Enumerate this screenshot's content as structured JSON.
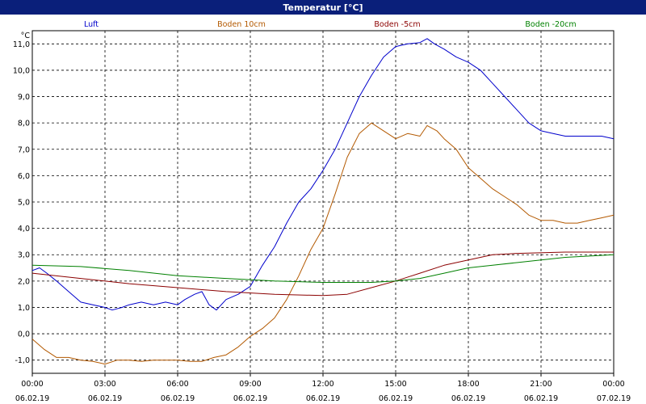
{
  "window": {
    "title": "Temperatur [°C]"
  },
  "chart_data": {
    "type": "line",
    "title": "Temperatur [°C]",
    "ylabel": "°C",
    "xlabel": "",
    "grid": true,
    "legend_placement": "top",
    "ylim": [
      -1.5,
      11.5
    ],
    "yticks": [
      -1.0,
      0.0,
      1.0,
      2.0,
      3.0,
      4.0,
      5.0,
      6.0,
      7.0,
      8.0,
      9.0,
      10.0,
      11.0
    ],
    "ytick_labels": [
      "-1,0",
      "0,0",
      "1,0",
      "2,0",
      "3,0",
      "4,0",
      "5,0",
      "6,0",
      "7,0",
      "8,0",
      "9,0",
      "10,0",
      "11,0"
    ],
    "xlim": [
      0,
      24
    ],
    "xticks": [
      {
        "time": "00:00",
        "date": "06.02.19"
      },
      {
        "time": "03:00",
        "date": "06.02.19"
      },
      {
        "time": "06:00",
        "date": "06.02.19"
      },
      {
        "time": "09:00",
        "date": "06.02.19"
      },
      {
        "time": "12:00",
        "date": "06.02.19"
      },
      {
        "time": "15:00",
        "date": "06.02.19"
      },
      {
        "time": "18:00",
        "date": "06.02.19"
      },
      {
        "time": "21:00",
        "date": "06.02.19"
      },
      {
        "time": "00:00",
        "date": "07.02.19"
      }
    ],
    "series": [
      {
        "name": "Luft",
        "color": "#0000cc",
        "points": [
          [
            0,
            2.4
          ],
          [
            0.3,
            2.5
          ],
          [
            0.6,
            2.3
          ],
          [
            1,
            2.0
          ],
          [
            1.5,
            1.6
          ],
          [
            2,
            1.2
          ],
          [
            2.5,
            1.1
          ],
          [
            3,
            1.0
          ],
          [
            3.3,
            0.9
          ],
          [
            3.7,
            1.0
          ],
          [
            4,
            1.1
          ],
          [
            4.5,
            1.2
          ],
          [
            5,
            1.1
          ],
          [
            5.5,
            1.2
          ],
          [
            6,
            1.1
          ],
          [
            6.3,
            1.3
          ],
          [
            6.7,
            1.5
          ],
          [
            7,
            1.6
          ],
          [
            7.3,
            1.1
          ],
          [
            7.6,
            0.9
          ],
          [
            8,
            1.3
          ],
          [
            8.5,
            1.5
          ],
          [
            9,
            1.8
          ],
          [
            9.5,
            2.6
          ],
          [
            10,
            3.3
          ],
          [
            10.5,
            4.2
          ],
          [
            11,
            5.0
          ],
          [
            11.5,
            5.5
          ],
          [
            12,
            6.2
          ],
          [
            12.5,
            7.0
          ],
          [
            13,
            8.0
          ],
          [
            13.5,
            9.0
          ],
          [
            14,
            9.8
          ],
          [
            14.5,
            10.5
          ],
          [
            15,
            10.9
          ],
          [
            15.5,
            11.0
          ],
          [
            16,
            11.05
          ],
          [
            16.3,
            11.2
          ],
          [
            16.6,
            11.0
          ],
          [
            17,
            10.8
          ],
          [
            17.5,
            10.5
          ],
          [
            18,
            10.3
          ],
          [
            18.5,
            10.0
          ],
          [
            19,
            9.5
          ],
          [
            19.5,
            9.0
          ],
          [
            20,
            8.5
          ],
          [
            20.5,
            8.0
          ],
          [
            21,
            7.7
          ],
          [
            21.5,
            7.6
          ],
          [
            22,
            7.5
          ],
          [
            22.5,
            7.5
          ],
          [
            23,
            7.5
          ],
          [
            23.5,
            7.5
          ],
          [
            24,
            7.4
          ]
        ]
      },
      {
        "name": "Boden 10cm",
        "color": "#b35900",
        "points": [
          [
            0,
            -0.2
          ],
          [
            0.5,
            -0.6
          ],
          [
            1,
            -0.9
          ],
          [
            1.5,
            -0.9
          ],
          [
            2,
            -1.0
          ],
          [
            2.5,
            -1.05
          ],
          [
            3,
            -1.15
          ],
          [
            3.5,
            -1.0
          ],
          [
            4,
            -1.0
          ],
          [
            4.5,
            -1.05
          ],
          [
            5,
            -1.0
          ],
          [
            5.5,
            -1.0
          ],
          [
            6,
            -1.0
          ],
          [
            6.5,
            -1.05
          ],
          [
            7,
            -1.05
          ],
          [
            7.5,
            -0.9
          ],
          [
            8,
            -0.8
          ],
          [
            8.5,
            -0.5
          ],
          [
            9,
            -0.1
          ],
          [
            9.5,
            0.2
          ],
          [
            10,
            0.6
          ],
          [
            10.5,
            1.3
          ],
          [
            11,
            2.2
          ],
          [
            11.5,
            3.2
          ],
          [
            12,
            4.0
          ],
          [
            12.5,
            5.3
          ],
          [
            13,
            6.7
          ],
          [
            13.5,
            7.6
          ],
          [
            14,
            8.0
          ],
          [
            14.5,
            7.7
          ],
          [
            15,
            7.4
          ],
          [
            15.5,
            7.6
          ],
          [
            16,
            7.5
          ],
          [
            16.3,
            7.9
          ],
          [
            16.7,
            7.7
          ],
          [
            17,
            7.4
          ],
          [
            17.5,
            7.0
          ],
          [
            18,
            6.3
          ],
          [
            18.5,
            5.9
          ],
          [
            19,
            5.5
          ],
          [
            19.5,
            5.2
          ],
          [
            20,
            4.9
          ],
          [
            20.5,
            4.5
          ],
          [
            21,
            4.3
          ],
          [
            21.5,
            4.3
          ],
          [
            22,
            4.2
          ],
          [
            22.5,
            4.2
          ],
          [
            23,
            4.3
          ],
          [
            23.5,
            4.4
          ],
          [
            24,
            4.5
          ]
        ]
      },
      {
        "name": "Boden -5cm",
        "color": "#8b0000",
        "points": [
          [
            0,
            2.3
          ],
          [
            2,
            2.1
          ],
          [
            4,
            1.9
          ],
          [
            6,
            1.75
          ],
          [
            8,
            1.6
          ],
          [
            10,
            1.5
          ],
          [
            12,
            1.45
          ],
          [
            13,
            1.5
          ],
          [
            14,
            1.75
          ],
          [
            15,
            2.0
          ],
          [
            16,
            2.3
          ],
          [
            17,
            2.6
          ],
          [
            18,
            2.8
          ],
          [
            19,
            3.0
          ],
          [
            20,
            3.05
          ],
          [
            22,
            3.1
          ],
          [
            24,
            3.1
          ]
        ]
      },
      {
        "name": "Boden -20cm",
        "color": "#008000",
        "points": [
          [
            0,
            2.6
          ],
          [
            2,
            2.55
          ],
          [
            4,
            2.4
          ],
          [
            6,
            2.2
          ],
          [
            8,
            2.1
          ],
          [
            10,
            2.0
          ],
          [
            12,
            1.95
          ],
          [
            14,
            1.95
          ],
          [
            15,
            2.0
          ],
          [
            16,
            2.1
          ],
          [
            17,
            2.3
          ],
          [
            18,
            2.5
          ],
          [
            19,
            2.6
          ],
          [
            20,
            2.7
          ],
          [
            21,
            2.8
          ],
          [
            22,
            2.9
          ],
          [
            24,
            3.0
          ]
        ]
      }
    ]
  }
}
